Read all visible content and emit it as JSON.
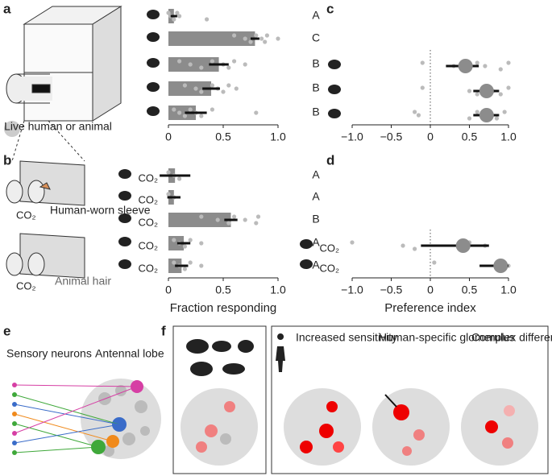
{
  "panels": [
    "a",
    "b",
    "c",
    "d",
    "e",
    "f"
  ],
  "diagram": {
    "live": "Live human or animal",
    "sleeve": "Human-worn sleeve",
    "hair": "Animal hair",
    "co2": "CO₂",
    "sensory": "Sensory neurons",
    "lobe": "Antennal lobe",
    "sensitivity": "Increased sensitivity",
    "specific": "Human-specific glomerulus",
    "complex": "Complex differential activity"
  },
  "chart_data": [
    {
      "type": "hbar",
      "categories": [
        null,
        null,
        null,
        null,
        null
      ],
      "values": [
        0.05,
        0.79,
        0.46,
        0.39,
        0.25
      ],
      "errors": [
        0.03,
        0.04,
        0.09,
        0.08,
        0.1
      ],
      "points": [
        [
          0.0,
          0.02,
          0.05,
          0.08,
          0.1,
          0.35
        ],
        [
          0.6,
          0.7,
          0.75,
          0.8,
          0.85,
          0.88,
          0.9,
          1.0
        ],
        [
          0.1,
          0.2,
          0.3,
          0.4,
          0.5,
          0.55,
          0.6,
          0.7
        ],
        [
          0.15,
          0.25,
          0.3,
          0.4,
          0.45,
          0.5,
          0.55,
          0.62
        ],
        [
          0.05,
          0.1,
          0.15,
          0.2,
          0.25,
          0.3,
          0.4,
          0.8
        ]
      ],
      "annotations": [
        "A",
        "C",
        "B",
        "B",
        "B"
      ],
      "xlim": [
        0,
        1
      ],
      "xticks": [
        0,
        0.5,
        {
          "value": 1,
          "label": "1.0"
        }
      ],
      "color": "#8c8c8c"
    },
    {
      "type": "hbar",
      "categories": [
        "CO₂",
        "CO₂",
        "CO₂",
        "CO₂",
        "CO₂"
      ],
      "values": [
        0.06,
        0.05,
        0.57,
        0.14,
        0.12
      ],
      "errors": [
        0.14,
        0.06,
        0.06,
        0.06,
        0.06
      ],
      "points": [
        [
          0.0,
          0.05,
          0.1
        ],
        [
          0.0,
          0.05
        ],
        [
          0.3,
          0.45,
          0.55,
          0.6,
          0.7,
          0.8,
          0.82
        ],
        [
          0.05,
          0.1,
          0.15,
          0.2,
          0.3
        ],
        [
          0.05,
          0.1,
          0.15,
          0.2,
          0.3
        ]
      ],
      "annotations": [
        "A",
        "A",
        "B",
        "A",
        "A"
      ],
      "xlim": [
        0,
        1
      ],
      "xticks": [
        0,
        0.5,
        {
          "value": 1,
          "label": "1.0"
        }
      ],
      "xlabel": "Fraction responding",
      "color": "#8c8c8c"
    },
    {
      "type": "dot",
      "categories": [
        null,
        null,
        null
      ],
      "values": [
        0.45,
        0.72,
        0.72
      ],
      "intervals": [
        [
          0.2,
          0.62
        ],
        [
          0.55,
          0.88
        ],
        [
          0.55,
          0.88
        ]
      ],
      "points": [
        [
          -0.1,
          0.3,
          0.5,
          0.6,
          0.7,
          0.9,
          1.0
        ],
        [
          -0.1,
          0.5,
          0.6,
          0.75,
          0.8,
          0.9,
          1.0
        ],
        [
          -0.2,
          -0.15,
          0.5,
          0.6,
          0.75,
          0.85,
          0.95
        ]
      ],
      "xlim": [
        -1,
        1
      ],
      "xticks": [
        {
          "value": -1,
          "label": "−1.0"
        },
        {
          "value": -0.5,
          "label": "−0.5"
        },
        0,
        0.5,
        {
          "value": 1,
          "label": "1.0"
        }
      ],
      "color": "#8c8c8c"
    },
    {
      "type": "dot",
      "categories": [
        "CO₂",
        "CO₂"
      ],
      "values": [
        0.42,
        0.9
      ],
      "intervals": [
        [
          -0.12,
          0.75
        ],
        [
          0.63,
          1.0
        ]
      ],
      "points": [
        [
          -1.0,
          -0.35,
          -0.2,
          0.5,
          0.7
        ],
        [
          0.05,
          0.85,
          0.9,
          0.95,
          1.0
        ]
      ],
      "xlim": [
        -1,
        1
      ],
      "xticks": [
        {
          "value": -1,
          "label": "−1.0"
        },
        {
          "value": -0.5,
          "label": "−0.5"
        },
        0,
        0.5,
        {
          "value": 1,
          "label": "1.0"
        }
      ],
      "xlabel": "Preference index",
      "color": "#8c8c8c"
    }
  ]
}
